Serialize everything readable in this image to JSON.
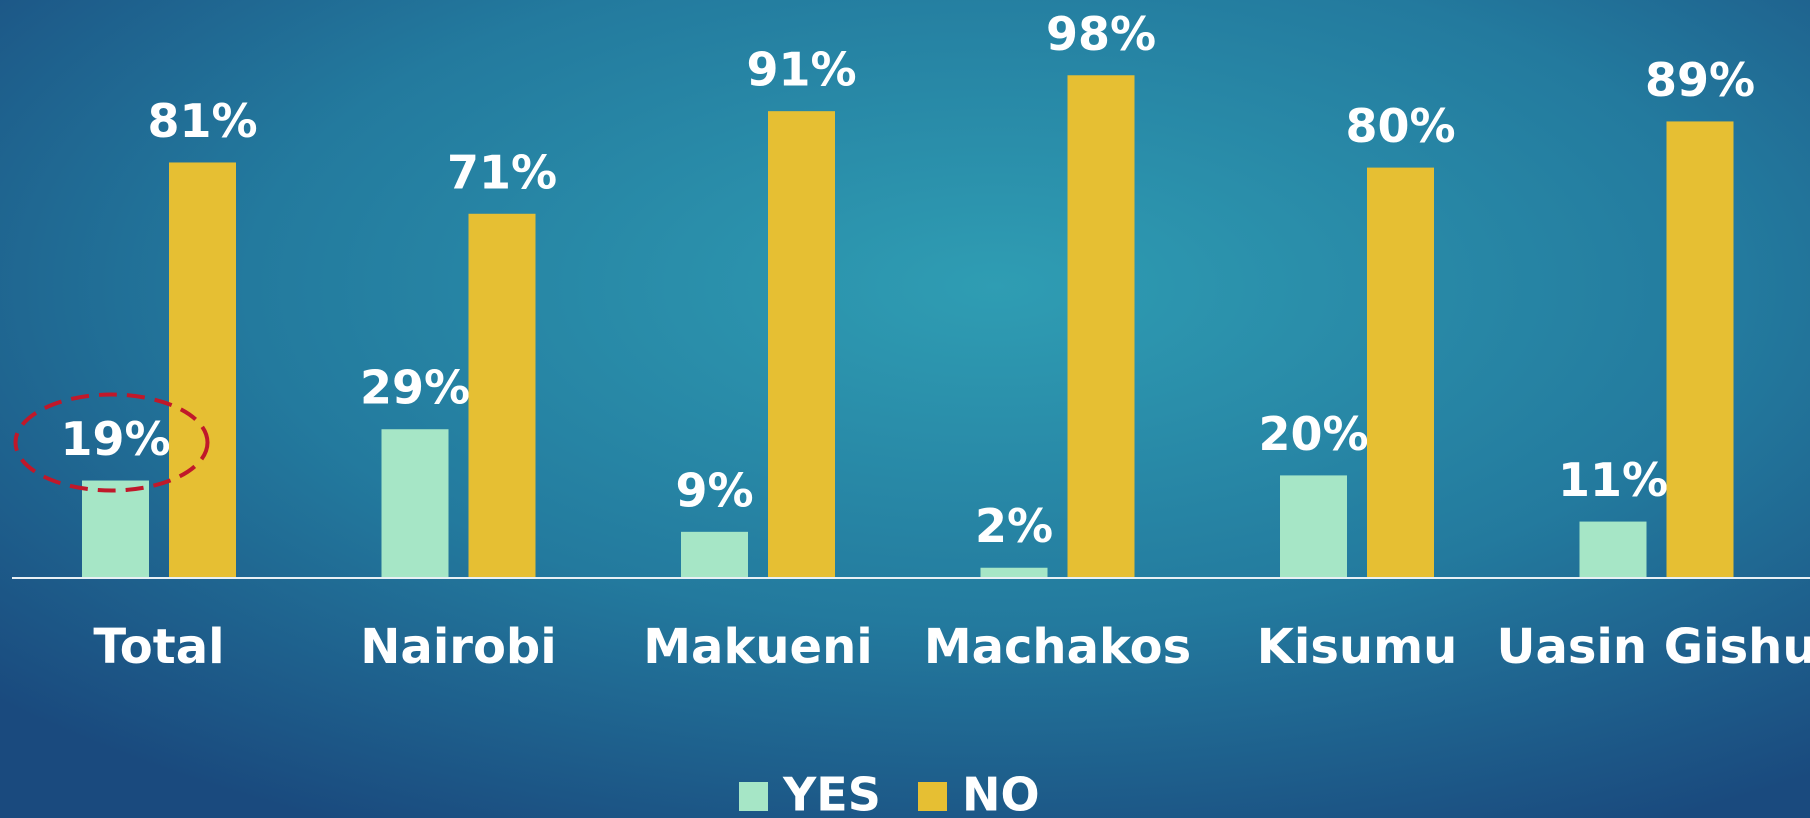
{
  "chart_data": {
    "type": "bar",
    "categories": [
      "Total",
      "Nairobi",
      "Makueni",
      "Machakos",
      "Kisumu",
      "Uasin Gishu"
    ],
    "series": [
      {
        "name": "YES",
        "color": "#a6e6c6",
        "values": [
          19,
          29,
          9,
          2,
          20,
          11
        ],
        "value_labels": [
          "19%",
          "29%",
          "9%",
          "2%",
          "20%",
          "11%"
        ]
      },
      {
        "name": "NO",
        "color": "#e6bf33",
        "values": [
          81,
          71,
          91,
          98,
          80,
          89
        ],
        "value_labels": [
          "81%",
          "71%",
          "91%",
          "98%",
          "80%",
          "89%"
        ]
      }
    ],
    "ylim": [
      0,
      100
    ],
    "legend": "bottom"
  }
}
